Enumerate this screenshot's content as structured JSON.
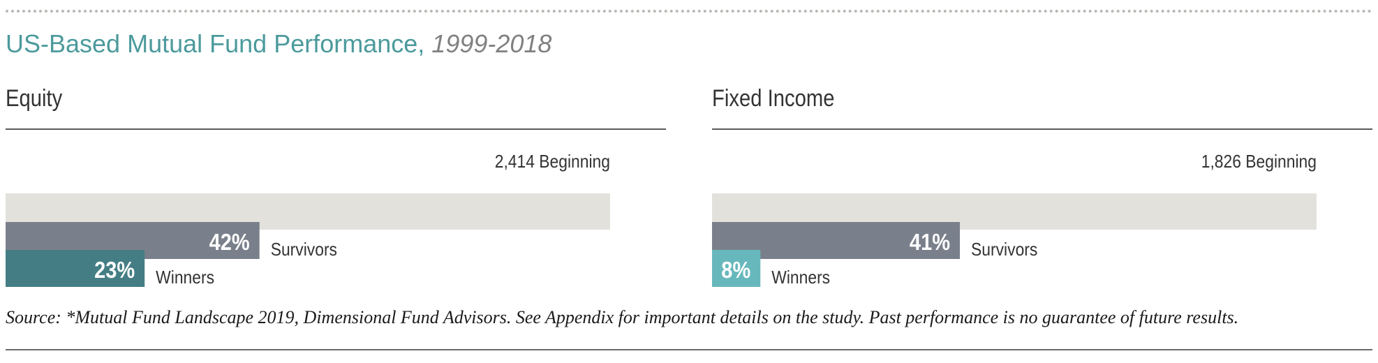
{
  "header": {
    "title": "US-Based Mutual Fund Performance,",
    "years": "1999-2018"
  },
  "chart_data": [
    {
      "type": "bar",
      "title": "Equity",
      "beginning": {
        "value": 2414,
        "label": "2,414 Beginning"
      },
      "series": [
        {
          "name": "Survivors",
          "value": 42,
          "label": "42%"
        },
        {
          "name": "Winners",
          "value": 23,
          "label": "23%"
        }
      ],
      "ylim": [
        0,
        100
      ]
    },
    {
      "type": "bar",
      "title": "Fixed Income",
      "beginning": {
        "value": 1826,
        "label": "1,826 Beginning"
      },
      "series": [
        {
          "name": "Survivors",
          "value": 41,
          "label": "41%"
        },
        {
          "name": "Winners",
          "value": 8,
          "label": "8%"
        }
      ],
      "ylim": [
        0,
        100
      ]
    }
  ],
  "colors": {
    "beginning_bar": "#e2e1dc",
    "survivors_bar": "#7a808b",
    "winners_bar_equity": "#447e84",
    "winners_bar_fixed_income": "#67b8bc",
    "bar_value_text": "#ffffff",
    "label_text": "#333333"
  },
  "footer": {
    "source": "Source: *Mutual Fund Landscape 2019, Dimensional Fund Advisors. See Appendix for important details on the study. Past performance is no guarantee of future results."
  }
}
